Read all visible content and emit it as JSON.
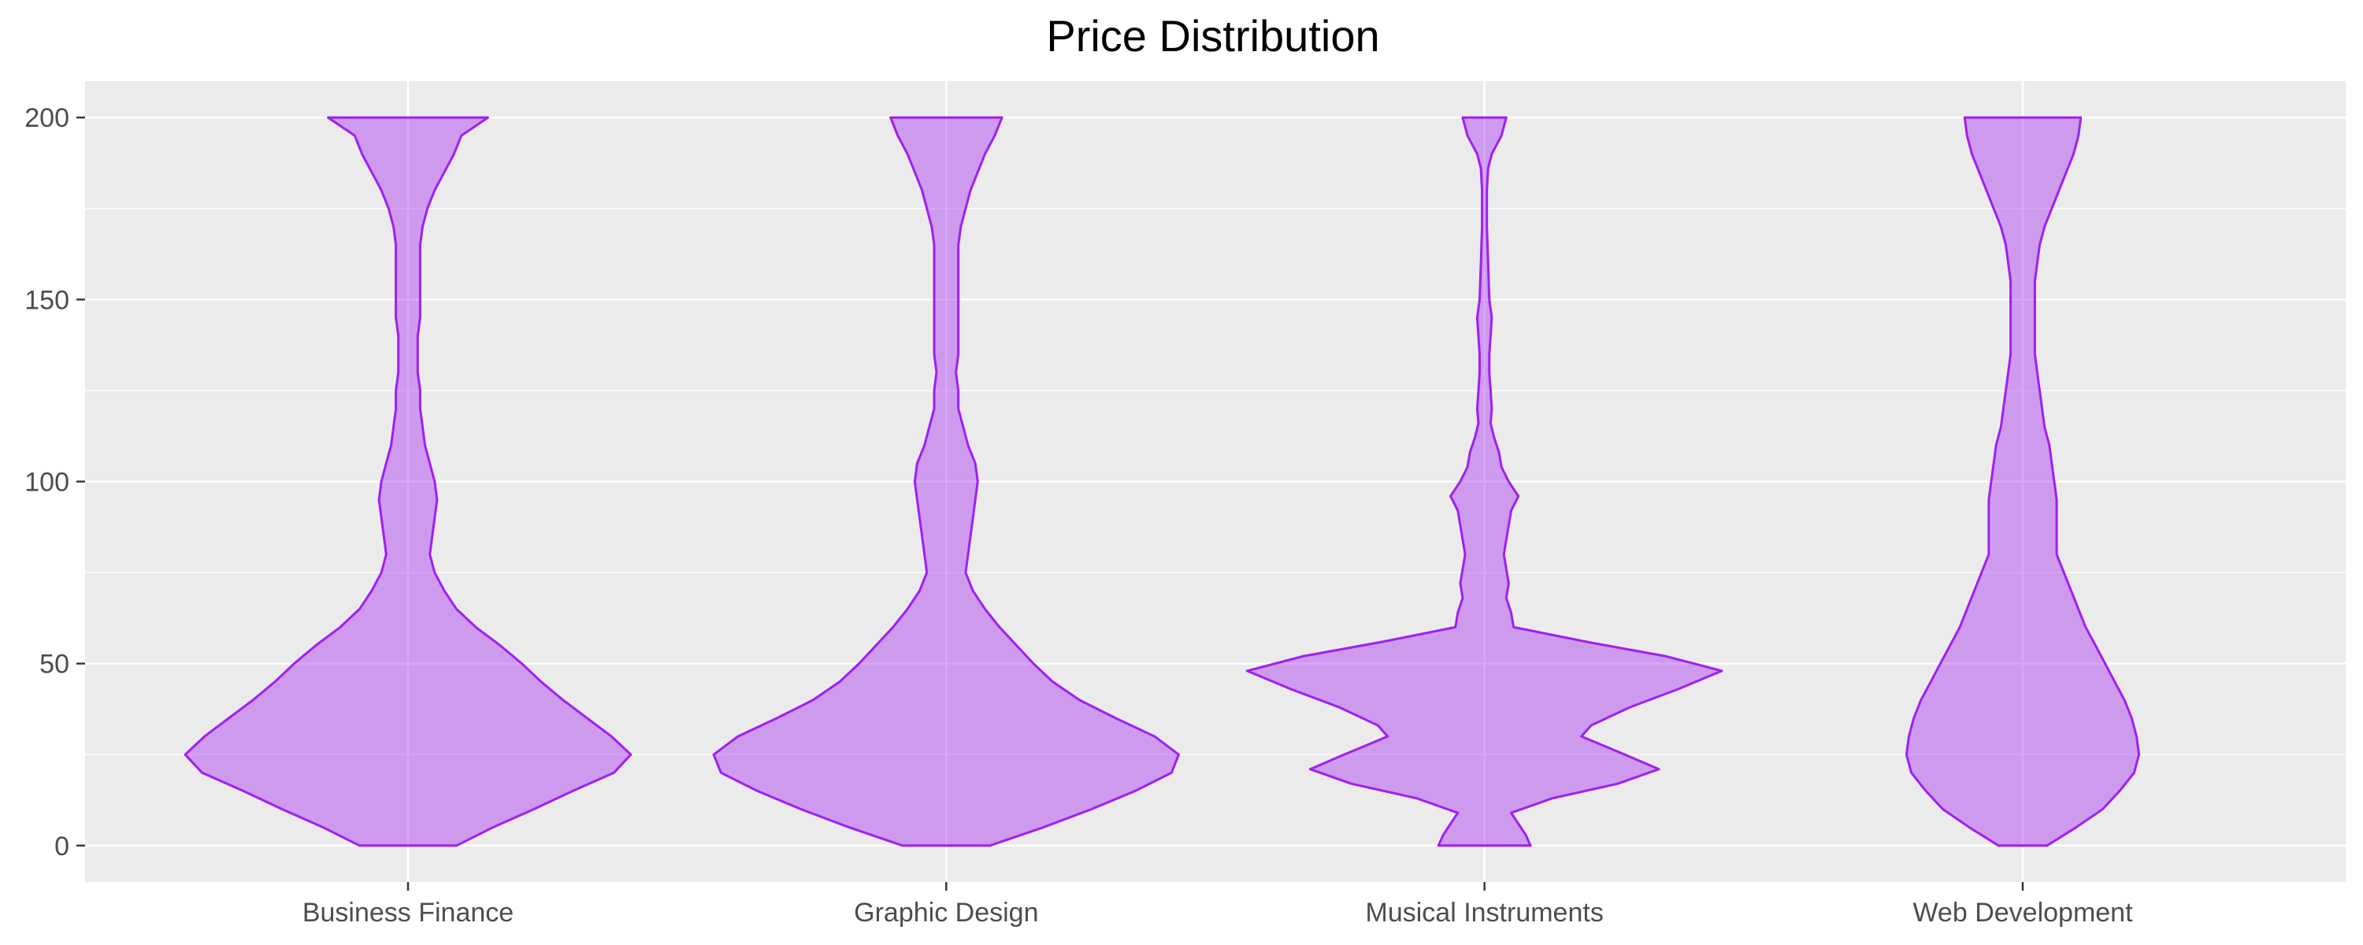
{
  "chart_data": {
    "type": "violin",
    "title": "Price Distribution",
    "xlabel": "",
    "ylabel": "",
    "categories": [
      "Business Finance",
      "Graphic Design",
      "Musical Instruments",
      "Web Development"
    ],
    "ylim": [
      -10,
      210
    ],
    "yticks": [
      0,
      50,
      100,
      150,
      200
    ],
    "grid": true,
    "legend": "none",
    "colors": {
      "panel": "#EBEBEB",
      "grid": "#FFFFFF",
      "fill": "#A020F0",
      "fill_opacity": 0.4,
      "stroke": "#A020F0"
    },
    "violins": [
      {
        "category": "Business Finance",
        "density": [
          [
            0,
            0.2
          ],
          [
            5,
            0.35
          ],
          [
            10,
            0.52
          ],
          [
            15,
            0.68
          ],
          [
            20,
            0.85
          ],
          [
            25,
            0.92
          ],
          [
            30,
            0.84
          ],
          [
            35,
            0.74
          ],
          [
            40,
            0.64
          ],
          [
            45,
            0.55
          ],
          [
            50,
            0.47
          ],
          [
            55,
            0.38
          ],
          [
            60,
            0.28
          ],
          [
            65,
            0.2
          ],
          [
            70,
            0.15
          ],
          [
            75,
            0.11
          ],
          [
            80,
            0.09
          ],
          [
            85,
            0.1
          ],
          [
            90,
            0.11
          ],
          [
            95,
            0.12
          ],
          [
            100,
            0.11
          ],
          [
            105,
            0.09
          ],
          [
            110,
            0.07
          ],
          [
            115,
            0.06
          ],
          [
            120,
            0.05
          ],
          [
            125,
            0.05
          ],
          [
            130,
            0.04
          ],
          [
            135,
            0.04
          ],
          [
            140,
            0.04
          ],
          [
            145,
            0.05
          ],
          [
            150,
            0.05
          ],
          [
            155,
            0.05
          ],
          [
            160,
            0.05
          ],
          [
            165,
            0.05
          ],
          [
            170,
            0.06
          ],
          [
            175,
            0.08
          ],
          [
            180,
            0.11
          ],
          [
            185,
            0.15
          ],
          [
            190,
            0.19
          ],
          [
            195,
            0.22
          ],
          [
            200,
            0.33
          ]
        ]
      },
      {
        "category": "Graphic Design",
        "density": [
          [
            0,
            0.18
          ],
          [
            5,
            0.4
          ],
          [
            10,
            0.6
          ],
          [
            15,
            0.78
          ],
          [
            20,
            0.93
          ],
          [
            25,
            0.96
          ],
          [
            30,
            0.86
          ],
          [
            35,
            0.7
          ],
          [
            40,
            0.55
          ],
          [
            45,
            0.44
          ],
          [
            50,
            0.36
          ],
          [
            55,
            0.29
          ],
          [
            60,
            0.22
          ],
          [
            65,
            0.16
          ],
          [
            70,
            0.11
          ],
          [
            75,
            0.08
          ],
          [
            80,
            0.09
          ],
          [
            85,
            0.1
          ],
          [
            90,
            0.11
          ],
          [
            95,
            0.12
          ],
          [
            100,
            0.13
          ],
          [
            105,
            0.12
          ],
          [
            110,
            0.09
          ],
          [
            115,
            0.07
          ],
          [
            120,
            0.05
          ],
          [
            125,
            0.05
          ],
          [
            130,
            0.04
          ],
          [
            135,
            0.05
          ],
          [
            140,
            0.05
          ],
          [
            145,
            0.05
          ],
          [
            150,
            0.05
          ],
          [
            155,
            0.05
          ],
          [
            160,
            0.05
          ],
          [
            165,
            0.05
          ],
          [
            170,
            0.06
          ],
          [
            175,
            0.08
          ],
          [
            180,
            0.1
          ],
          [
            185,
            0.13
          ],
          [
            190,
            0.16
          ],
          [
            195,
            0.2
          ],
          [
            200,
            0.23
          ]
        ]
      },
      {
        "category": "Musical Instruments",
        "density": [
          [
            0,
            0.19
          ],
          [
            3,
            0.17
          ],
          [
            6,
            0.14
          ],
          [
            9,
            0.11
          ],
          [
            13,
            0.28
          ],
          [
            17,
            0.55
          ],
          [
            21,
            0.72
          ],
          [
            25,
            0.58
          ],
          [
            30,
            0.4
          ],
          [
            33,
            0.44
          ],
          [
            38,
            0.6
          ],
          [
            43,
            0.8
          ],
          [
            48,
            0.98
          ],
          [
            52,
            0.75
          ],
          [
            56,
            0.42
          ],
          [
            60,
            0.12
          ],
          [
            64,
            0.11
          ],
          [
            68,
            0.09
          ],
          [
            72,
            0.1
          ],
          [
            76,
            0.09
          ],
          [
            80,
            0.08
          ],
          [
            84,
            0.09
          ],
          [
            88,
            0.1
          ],
          [
            92,
            0.11
          ],
          [
            96,
            0.14
          ],
          [
            100,
            0.1
          ],
          [
            104,
            0.07
          ],
          [
            108,
            0.06
          ],
          [
            112,
            0.04
          ],
          [
            116,
            0.025
          ],
          [
            120,
            0.03
          ],
          [
            125,
            0.025
          ],
          [
            130,
            0.02
          ],
          [
            135,
            0.02
          ],
          [
            140,
            0.025
          ],
          [
            145,
            0.03
          ],
          [
            150,
            0.02
          ],
          [
            160,
            0.015
          ],
          [
            170,
            0.01
          ],
          [
            180,
            0.01
          ],
          [
            186,
            0.015
          ],
          [
            190,
            0.03
          ],
          [
            195,
            0.07
          ],
          [
            200,
            0.09
          ]
        ]
      },
      {
        "category": "Web Development",
        "density": [
          [
            0,
            0.1
          ],
          [
            5,
            0.22
          ],
          [
            10,
            0.33
          ],
          [
            15,
            0.4
          ],
          [
            20,
            0.46
          ],
          [
            25,
            0.48
          ],
          [
            30,
            0.47
          ],
          [
            35,
            0.45
          ],
          [
            40,
            0.42
          ],
          [
            45,
            0.38
          ],
          [
            50,
            0.34
          ],
          [
            55,
            0.3
          ],
          [
            60,
            0.26
          ],
          [
            65,
            0.23
          ],
          [
            70,
            0.2
          ],
          [
            75,
            0.17
          ],
          [
            80,
            0.14
          ],
          [
            85,
            0.14
          ],
          [
            90,
            0.14
          ],
          [
            95,
            0.14
          ],
          [
            100,
            0.13
          ],
          [
            105,
            0.12
          ],
          [
            110,
            0.11
          ],
          [
            115,
            0.09
          ],
          [
            120,
            0.08
          ],
          [
            125,
            0.07
          ],
          [
            130,
            0.06
          ],
          [
            135,
            0.05
          ],
          [
            140,
            0.05
          ],
          [
            145,
            0.05
          ],
          [
            150,
            0.05
          ],
          [
            155,
            0.05
          ],
          [
            160,
            0.06
          ],
          [
            165,
            0.07
          ],
          [
            170,
            0.09
          ],
          [
            175,
            0.12
          ],
          [
            180,
            0.15
          ],
          [
            185,
            0.18
          ],
          [
            190,
            0.21
          ],
          [
            195,
            0.23
          ],
          [
            200,
            0.24
          ]
        ]
      }
    ]
  }
}
